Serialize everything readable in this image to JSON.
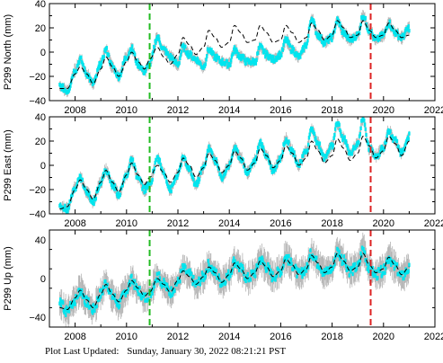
{
  "colors": {
    "data": "#00e5ee",
    "error_bars": "#b4b4b4",
    "model": "#000000",
    "event_green": "#22bb22",
    "event_red": "#dd2222",
    "axis": "#000000"
  },
  "chart_data": [
    {
      "type": "scatter",
      "ylabel": "P299 North (mm)",
      "xlim": [
        2007.0,
        2022.0
      ],
      "ylim": [
        -40,
        40
      ],
      "x_ticks": [
        2008,
        2010,
        2012,
        2014,
        2016,
        2018,
        2020,
        2022
      ],
      "y_ticks": [
        -40,
        -20,
        0,
        20,
        40
      ],
      "x_tick_labels": [
        "2008",
        "2010",
        "2012",
        "2014",
        "2016",
        "2018",
        "2020",
        "2022"
      ],
      "y_tick_labels": [
        "−40",
        "−20",
        "0",
        "20",
        "40"
      ],
      "grid": false,
      "vertical_lines": [
        {
          "x": 2010.9,
          "color": "green",
          "style": "dashed"
        },
        {
          "x": 2019.5,
          "color": "red",
          "style": "dashed"
        }
      ],
      "series": [
        {
          "style": "cyan points with gray error bars",
          "x": [
            2007.4,
            2007.7,
            2008.0,
            2008.2,
            2008.45,
            2008.7,
            2009.0,
            2009.2,
            2009.45,
            2009.7,
            2010.0,
            2010.2,
            2010.45,
            2010.7,
            2010.9,
            2011.2,
            2011.45,
            2011.7,
            2012.0,
            2012.2,
            2012.45,
            2012.7,
            2013.0,
            2013.2,
            2013.45,
            2013.7,
            2014.0,
            2014.2,
            2014.45,
            2014.7,
            2015.0,
            2015.2,
            2015.45,
            2015.7,
            2016.0,
            2016.2,
            2016.45,
            2016.7,
            2017.0,
            2017.2,
            2017.45,
            2017.7,
            2018.0,
            2018.2,
            2018.45,
            2018.7,
            2019.0,
            2019.2,
            2019.45,
            2019.7,
            2020.0,
            2020.2,
            2020.45,
            2020.7,
            2021.0
          ],
          "y": [
            -28,
            -32,
            -15,
            -6,
            -18,
            -26,
            -10,
            2,
            -12,
            -20,
            -4,
            3,
            -10,
            -16,
            -10,
            12,
            2,
            -4,
            -10,
            4,
            -2,
            -6,
            -12,
            2,
            -4,
            -8,
            -10,
            2,
            -4,
            -8,
            -8,
            4,
            -2,
            -6,
            -2,
            10,
            2,
            -4,
            6,
            28,
            14,
            8,
            12,
            26,
            16,
            10,
            14,
            30,
            18,
            10,
            14,
            24,
            16,
            12,
            20
          ]
        },
        {
          "style": "black dashed model",
          "x": [
            2007.4,
            2007.7,
            2008.0,
            2008.2,
            2008.45,
            2008.7,
            2009.0,
            2009.2,
            2009.45,
            2009.7,
            2010.0,
            2010.2,
            2010.45,
            2010.7,
            2010.9,
            2011.2,
            2011.45,
            2011.7,
            2012.0,
            2012.2,
            2012.45,
            2012.7,
            2013.0,
            2013.2,
            2013.45,
            2013.7,
            2014.0,
            2014.2,
            2014.45,
            2014.7,
            2015.0,
            2015.2,
            2015.45,
            2015.7,
            2016.0,
            2016.2,
            2016.45,
            2016.7,
            2017.0,
            2017.2,
            2017.45,
            2017.7,
            2018.0,
            2018.2,
            2018.45,
            2018.7,
            2019.0,
            2019.2,
            2019.45,
            2019.7,
            2020.0,
            2020.2,
            2020.45,
            2020.7,
            2021.0
          ],
          "y": [
            -30,
            -30,
            -18,
            -12,
            -18,
            -26,
            -14,
            -4,
            -12,
            -20,
            -8,
            0,
            -8,
            -14,
            -6,
            4,
            -4,
            -10,
            -2,
            12,
            6,
            -2,
            4,
            18,
            12,
            4,
            8,
            22,
            16,
            8,
            10,
            22,
            16,
            8,
            10,
            22,
            16,
            8,
            12,
            24,
            18,
            10,
            14,
            26,
            20,
            12,
            14,
            26,
            18,
            12,
            14,
            24,
            18,
            12,
            14
          ]
        }
      ]
    },
    {
      "type": "scatter",
      "ylabel": "P299 East (mm)",
      "xlim": [
        2007.0,
        2022.0
      ],
      "ylim": [
        -40,
        40
      ],
      "x_ticks": [
        2008,
        2010,
        2012,
        2014,
        2016,
        2018,
        2020,
        2022
      ],
      "y_ticks": [
        -40,
        -20,
        0,
        20,
        40
      ],
      "x_tick_labels": [
        "2008",
        "2010",
        "2012",
        "2014",
        "2016",
        "2018",
        "2020",
        "2022"
      ],
      "y_tick_labels": [
        "−40",
        "−20",
        "0",
        "20",
        "40"
      ],
      "grid": false,
      "vertical_lines": [
        {
          "x": 2010.9,
          "color": "green",
          "style": "dashed"
        },
        {
          "x": 2019.5,
          "color": "red",
          "style": "dashed"
        }
      ],
      "series": [
        {
          "style": "cyan points with gray error bars",
          "x": [
            2007.4,
            2007.7,
            2008.0,
            2008.2,
            2008.45,
            2008.7,
            2009.0,
            2009.2,
            2009.45,
            2009.7,
            2010.0,
            2010.2,
            2010.45,
            2010.7,
            2010.9,
            2011.2,
            2011.45,
            2011.7,
            2012.0,
            2012.2,
            2012.45,
            2012.7,
            2013.0,
            2013.2,
            2013.45,
            2013.7,
            2014.0,
            2014.2,
            2014.45,
            2014.7,
            2015.0,
            2015.2,
            2015.45,
            2015.7,
            2016.0,
            2016.2,
            2016.45,
            2016.7,
            2017.0,
            2017.2,
            2017.45,
            2017.7,
            2018.0,
            2018.2,
            2018.45,
            2018.7,
            2019.0,
            2019.2,
            2019.45,
            2019.7,
            2020.0,
            2020.2,
            2020.45,
            2020.7,
            2021.0
          ],
          "y": [
            -34,
            -36,
            -18,
            -10,
            -22,
            -30,
            -14,
            -4,
            -16,
            -24,
            -8,
            4,
            -10,
            -20,
            -16,
            6,
            -6,
            -20,
            -8,
            6,
            -4,
            -16,
            -2,
            14,
            4,
            -10,
            0,
            14,
            6,
            -6,
            4,
            18,
            8,
            -4,
            6,
            22,
            12,
            0,
            12,
            30,
            18,
            6,
            16,
            34,
            22,
            10,
            18,
            38,
            14,
            8,
            14,
            28,
            20,
            10,
            24
          ]
        },
        {
          "style": "black dashed model",
          "x": [
            2007.4,
            2007.7,
            2008.0,
            2008.2,
            2008.45,
            2008.7,
            2009.0,
            2009.2,
            2009.45,
            2009.7,
            2010.0,
            2010.2,
            2010.45,
            2010.7,
            2010.9,
            2011.2,
            2011.45,
            2011.7,
            2012.0,
            2012.2,
            2012.45,
            2012.7,
            2013.0,
            2013.2,
            2013.45,
            2013.7,
            2014.0,
            2014.2,
            2014.45,
            2014.7,
            2015.0,
            2015.2,
            2015.45,
            2015.7,
            2016.0,
            2016.2,
            2016.45,
            2016.7,
            2017.0,
            2017.2,
            2017.45,
            2017.7,
            2018.0,
            2018.2,
            2018.45,
            2018.7,
            2019.0,
            2019.2,
            2019.45,
            2019.7,
            2020.0,
            2020.2,
            2020.45,
            2020.7,
            2021.0
          ],
          "y": [
            -36,
            -34,
            -20,
            -12,
            -20,
            -28,
            -14,
            -4,
            -14,
            -22,
            -8,
            2,
            -8,
            -16,
            -10,
            0,
            -6,
            -14,
            -6,
            6,
            0,
            -10,
            -2,
            10,
            4,
            -6,
            0,
            12,
            6,
            -4,
            2,
            14,
            8,
            -2,
            4,
            16,
            10,
            0,
            6,
            20,
            12,
            2,
            8,
            22,
            14,
            4,
            10,
            24,
            16,
            6,
            12,
            24,
            18,
            8,
            20
          ]
        }
      ]
    },
    {
      "type": "scatter",
      "ylabel": "P299 Up (mm)",
      "xlim": [
        2007.0,
        2022.0
      ],
      "ylim": [
        -50,
        50
      ],
      "x_ticks": [
        2008,
        2010,
        2012,
        2014,
        2016,
        2018,
        2020,
        2022
      ],
      "y_ticks": [
        -40,
        0,
        40
      ],
      "x_tick_labels": [
        "2008",
        "2010",
        "2012",
        "2014",
        "2016",
        "2018",
        "2020",
        "2022"
      ],
      "y_tick_labels": [
        "−40",
        "0",
        "40"
      ],
      "grid": false,
      "vertical_lines": [
        {
          "x": 2010.9,
          "color": "green",
          "style": "dashed"
        },
        {
          "x": 2019.5,
          "color": "red",
          "style": "dashed"
        }
      ],
      "series": [
        {
          "style": "cyan points with gray error bars",
          "x": [
            2007.4,
            2007.7,
            2008.0,
            2008.2,
            2008.45,
            2008.7,
            2009.0,
            2009.2,
            2009.45,
            2009.7,
            2010.0,
            2010.2,
            2010.45,
            2010.7,
            2010.9,
            2011.2,
            2011.45,
            2011.7,
            2012.0,
            2012.2,
            2012.45,
            2012.7,
            2013.0,
            2013.2,
            2013.45,
            2013.7,
            2014.0,
            2014.2,
            2014.45,
            2014.7,
            2015.0,
            2015.2,
            2015.45,
            2015.7,
            2016.0,
            2016.2,
            2016.45,
            2016.7,
            2017.0,
            2017.2,
            2017.45,
            2017.7,
            2018.0,
            2018.2,
            2018.45,
            2018.7,
            2019.0,
            2019.2,
            2019.45,
            2019.7,
            2020.0,
            2020.2,
            2020.45,
            2020.7,
            2021.0
          ],
          "y": [
            -26,
            -34,
            -22,
            -12,
            -24,
            -32,
            -16,
            -4,
            -18,
            -26,
            -12,
            -2,
            -12,
            -20,
            -16,
            2,
            -6,
            -14,
            -4,
            10,
            4,
            -6,
            2,
            14,
            6,
            -4,
            4,
            18,
            10,
            0,
            6,
            20,
            12,
            2,
            8,
            22,
            14,
            4,
            10,
            26,
            16,
            6,
            10,
            28,
            18,
            8,
            12,
            30,
            10,
            4,
            8,
            22,
            12,
            2,
            10
          ]
        },
        {
          "style": "black dashed model",
          "x": [
            2007.4,
            2007.7,
            2008.0,
            2008.2,
            2008.45,
            2008.7,
            2009.0,
            2009.2,
            2009.45,
            2009.7,
            2010.0,
            2010.2,
            2010.45,
            2010.7,
            2010.9,
            2011.2,
            2011.45,
            2011.7,
            2012.0,
            2012.2,
            2012.45,
            2012.7,
            2013.0,
            2013.2,
            2013.45,
            2013.7,
            2014.0,
            2014.2,
            2014.45,
            2014.7,
            2015.0,
            2015.2,
            2015.45,
            2015.7,
            2016.0,
            2016.2,
            2016.45,
            2016.7,
            2017.0,
            2017.2,
            2017.45,
            2017.7,
            2018.0,
            2018.2,
            2018.45,
            2018.7,
            2019.0,
            2019.2,
            2019.45,
            2019.7,
            2020.0,
            2020.2,
            2020.45,
            2020.7,
            2021.0
          ],
          "y": [
            -30,
            -32,
            -20,
            -12,
            -22,
            -30,
            -16,
            -6,
            -16,
            -24,
            -12,
            -2,
            -10,
            -18,
            -14,
            0,
            -6,
            -14,
            -2,
            8,
            2,
            -6,
            2,
            12,
            6,
            -4,
            4,
            16,
            10,
            0,
            6,
            18,
            12,
            2,
            8,
            20,
            14,
            4,
            10,
            24,
            16,
            6,
            12,
            26,
            18,
            8,
            12,
            26,
            14,
            6,
            10,
            22,
            14,
            4,
            12
          ]
        }
      ]
    }
  ],
  "footer": {
    "label": "Plot Last Updated:",
    "timestamp": "Sunday, January 30, 2022 08:21:21 PST"
  }
}
